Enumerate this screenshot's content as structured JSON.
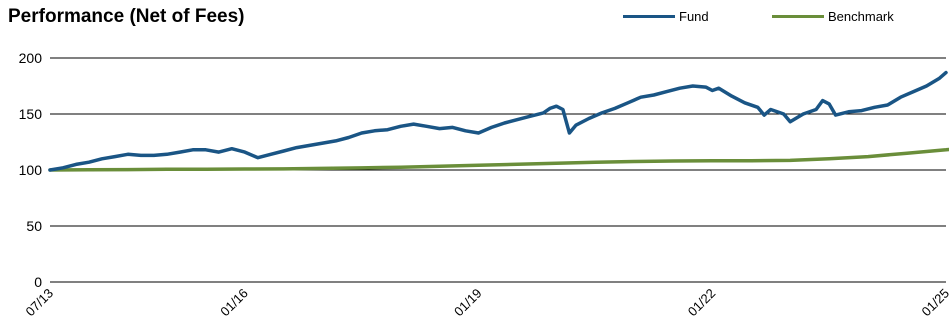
{
  "chart_data": {
    "type": "line",
    "title": "Performance (Net of Fees)",
    "xlabel": "",
    "ylabel": "",
    "ylim": [
      0,
      200
    ],
    "y_ticks": [
      "0",
      "50",
      "100",
      "150",
      "200"
    ],
    "x_ticks": [
      "07/13",
      "01/16",
      "01/19",
      "01/22",
      "01/25"
    ],
    "grid": "horizontal",
    "legend_position": "top-right",
    "series": [
      {
        "name": "Fund",
        "color": "#1a5585",
        "points": [
          [
            "07/13",
            100
          ],
          [
            "09/13",
            102
          ],
          [
            "11/13",
            105
          ],
          [
            "01/14",
            107
          ],
          [
            "03/14",
            110
          ],
          [
            "05/14",
            112
          ],
          [
            "07/14",
            114
          ],
          [
            "09/14",
            113
          ],
          [
            "11/14",
            113
          ],
          [
            "01/15",
            114
          ],
          [
            "03/15",
            116
          ],
          [
            "05/15",
            118
          ],
          [
            "07/15",
            118
          ],
          [
            "09/15",
            116
          ],
          [
            "11/15",
            119
          ],
          [
            "01/16",
            116
          ],
          [
            "03/16",
            111
          ],
          [
            "05/16",
            114
          ],
          [
            "07/16",
            117
          ],
          [
            "09/16",
            120
          ],
          [
            "11/16",
            122
          ],
          [
            "01/17",
            124
          ],
          [
            "03/17",
            126
          ],
          [
            "05/17",
            129
          ],
          [
            "07/17",
            133
          ],
          [
            "09/17",
            135
          ],
          [
            "11/17",
            136
          ],
          [
            "01/18",
            139
          ],
          [
            "03/18",
            141
          ],
          [
            "05/18",
            139
          ],
          [
            "07/18",
            137
          ],
          [
            "09/18",
            138
          ],
          [
            "11/18",
            135
          ],
          [
            "01/19",
            133
          ],
          [
            "03/19",
            138
          ],
          [
            "05/19",
            142
          ],
          [
            "07/19",
            145
          ],
          [
            "09/19",
            148
          ],
          [
            "11/19",
            151
          ],
          [
            "12/19",
            155
          ],
          [
            "01/20",
            157
          ],
          [
            "02/20",
            154
          ],
          [
            "03/20",
            133
          ],
          [
            "04/20",
            140
          ],
          [
            "06/20",
            146
          ],
          [
            "08/20",
            151
          ],
          [
            "10/20",
            155
          ],
          [
            "12/20",
            160
          ],
          [
            "02/21",
            165
          ],
          [
            "04/21",
            167
          ],
          [
            "06/21",
            170
          ],
          [
            "08/21",
            173
          ],
          [
            "10/21",
            175
          ],
          [
            "12/21",
            174
          ],
          [
            "01/22",
            171
          ],
          [
            "02/22",
            173
          ],
          [
            "04/22",
            166
          ],
          [
            "06/22",
            160
          ],
          [
            "08/22",
            156
          ],
          [
            "09/22",
            149
          ],
          [
            "10/22",
            154
          ],
          [
            "12/22",
            150
          ],
          [
            "01/23",
            143
          ],
          [
            "03/23",
            150
          ],
          [
            "05/23",
            154
          ],
          [
            "06/23",
            162
          ],
          [
            "07/23",
            159
          ],
          [
            "08/23",
            149
          ],
          [
            "10/23",
            152
          ],
          [
            "12/23",
            153
          ],
          [
            "02/24",
            156
          ],
          [
            "04/24",
            158
          ],
          [
            "06/24",
            165
          ],
          [
            "08/24",
            170
          ],
          [
            "10/24",
            175
          ],
          [
            "12/24",
            182
          ],
          [
            "01/25",
            187
          ]
        ]
      },
      {
        "name": "Benchmark",
        "color": "#6a8e3a",
        "points": [
          [
            "07/13",
            100
          ],
          [
            "01/14",
            100.2
          ],
          [
            "07/14",
            100.4
          ],
          [
            "01/15",
            100.6
          ],
          [
            "07/15",
            100.7
          ],
          [
            "01/16",
            100.9
          ],
          [
            "07/16",
            101
          ],
          [
            "01/17",
            101.4
          ],
          [
            "07/17",
            101.9
          ],
          [
            "01/18",
            102.5
          ],
          [
            "07/18",
            103.3
          ],
          [
            "01/19",
            104.2
          ],
          [
            "07/19",
            105.1
          ],
          [
            "01/20",
            106
          ],
          [
            "07/20",
            106.9
          ],
          [
            "01/21",
            107.6
          ],
          [
            "07/21",
            108
          ],
          [
            "01/22",
            108.2
          ],
          [
            "07/22",
            108.3
          ],
          [
            "01/23",
            108.6
          ],
          [
            "07/23",
            110
          ],
          [
            "01/24",
            112
          ],
          [
            "07/24",
            115
          ],
          [
            "01/25",
            118
          ],
          [
            "04/25",
            120
          ]
        ]
      }
    ]
  }
}
